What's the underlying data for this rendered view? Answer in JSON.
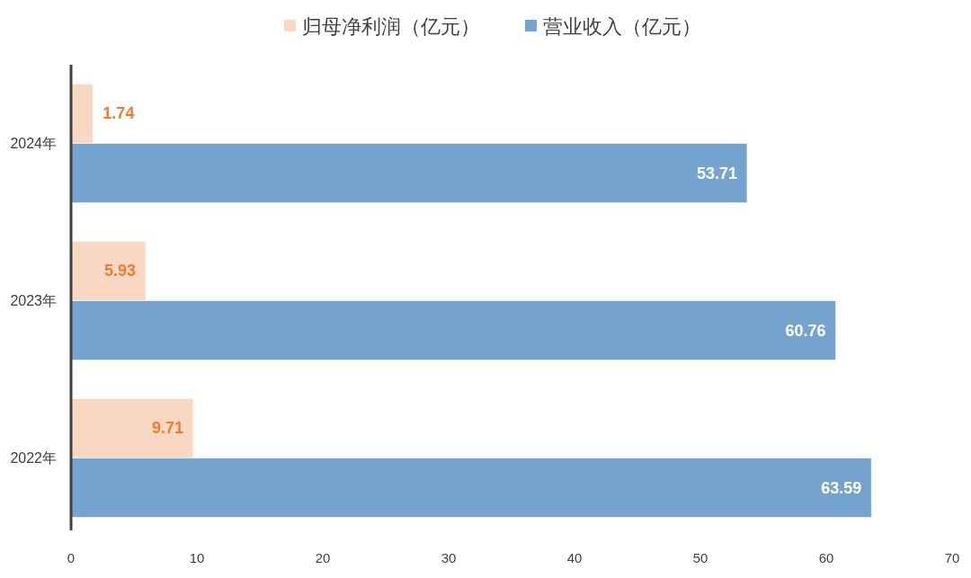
{
  "chart_data": {
    "type": "bar",
    "orientation": "horizontal",
    "categories": [
      "2024年",
      "2023年",
      "2022年"
    ],
    "series": [
      {
        "name": "归母净利润（亿元）",
        "color": "#f8d8c2",
        "values": [
          1.74,
          5.93,
          9.71
        ]
      },
      {
        "name": "营业收入（亿元）",
        "color": "#75a4d0",
        "values": [
          53.71,
          60.76,
          63.59
        ]
      }
    ],
    "xlim": [
      0,
      70
    ],
    "xticks": [
      0,
      10,
      20,
      30,
      40,
      50,
      60,
      70
    ],
    "legend": "top",
    "data_labels": true
  }
}
